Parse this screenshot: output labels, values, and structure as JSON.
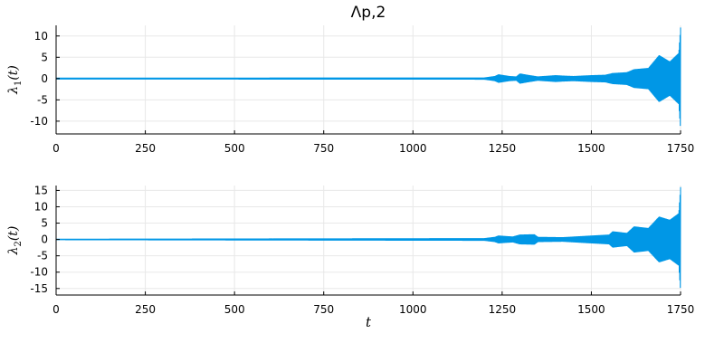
{
  "chart_data": {
    "title": "Λp,2",
    "type": "line",
    "color": "#0097e6",
    "xlim": [
      0,
      1750
    ],
    "xticks": [
      0,
      250,
      500,
      750,
      1000,
      1250,
      1500,
      1750
    ],
    "panels": [
      {
        "ylabel": "λ1(t)",
        "ylabel_main": "λ",
        "ylabel_sub": "1",
        "ylabel_arg": "(t)",
        "ylim": [
          -13,
          12.5
        ],
        "yticks": [
          -10,
          -5,
          0,
          5,
          10
        ],
        "xlabel": "",
        "envelope": [
          {
            "t": 0,
            "amp": 0.2
          },
          {
            "t": 1200,
            "amp": 0.25
          },
          {
            "t": 1230,
            "amp": 0.6
          },
          {
            "t": 1240,
            "amp": 1.0
          },
          {
            "t": 1270,
            "amp": 0.6
          },
          {
            "t": 1290,
            "amp": 0.5
          },
          {
            "t": 1300,
            "amp": 1.2
          },
          {
            "t": 1320,
            "amp": 0.9
          },
          {
            "t": 1350,
            "amp": 0.5
          },
          {
            "t": 1400,
            "amp": 0.8
          },
          {
            "t": 1420,
            "amp": 0.7
          },
          {
            "t": 1450,
            "amp": 0.6
          },
          {
            "t": 1500,
            "amp": 0.8
          },
          {
            "t": 1540,
            "amp": 0.9
          },
          {
            "t": 1560,
            "amp": 1.3
          },
          {
            "t": 1600,
            "amp": 1.5
          },
          {
            "t": 1620,
            "amp": 2.2
          },
          {
            "t": 1660,
            "amp": 2.5
          },
          {
            "t": 1690,
            "amp": 5.5
          },
          {
            "t": 1720,
            "amp": 4.0
          },
          {
            "t": 1745,
            "amp": 6.0
          },
          {
            "t": 1750,
            "amp": 12.0
          }
        ]
      },
      {
        "ylabel": "λ2(t)",
        "ylabel_main": "λ",
        "ylabel_sub": "2",
        "ylabel_arg": "(t)",
        "ylim": [
          -17,
          16.5
        ],
        "yticks": [
          -15,
          -10,
          -5,
          0,
          5,
          10,
          15
        ],
        "xlabel": "t",
        "envelope": [
          {
            "t": 0,
            "amp": 0.2
          },
          {
            "t": 1200,
            "amp": 0.4
          },
          {
            "t": 1230,
            "amp": 0.8
          },
          {
            "t": 1240,
            "amp": 1.2
          },
          {
            "t": 1280,
            "amp": 0.9
          },
          {
            "t": 1300,
            "amp": 1.5
          },
          {
            "t": 1340,
            "amp": 1.6
          },
          {
            "t": 1350,
            "amp": 0.8
          },
          {
            "t": 1420,
            "amp": 0.7
          },
          {
            "t": 1500,
            "amp": 1.2
          },
          {
            "t": 1550,
            "amp": 1.5
          },
          {
            "t": 1560,
            "amp": 2.5
          },
          {
            "t": 1600,
            "amp": 2.0
          },
          {
            "t": 1620,
            "amp": 4.0
          },
          {
            "t": 1660,
            "amp": 3.5
          },
          {
            "t": 1690,
            "amp": 7.0
          },
          {
            "t": 1720,
            "amp": 6.0
          },
          {
            "t": 1745,
            "amp": 8.0
          },
          {
            "t": 1750,
            "amp": 16.0
          }
        ]
      }
    ]
  }
}
